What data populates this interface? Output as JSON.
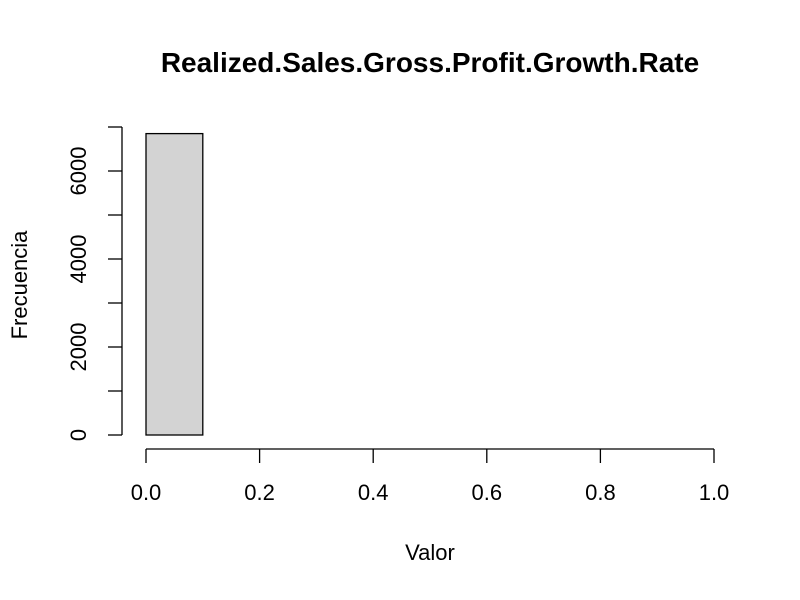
{
  "chart_data": {
    "type": "bar",
    "title": "Realized.Sales.Gross.Profit.Growth.Rate",
    "xlabel": "Valor",
    "ylabel": "Frecuencia",
    "bins": [
      {
        "from": 0.0,
        "to": 0.1,
        "count": 6850
      },
      {
        "from": 0.1,
        "to": 0.2,
        "count": 0
      },
      {
        "from": 0.2,
        "to": 0.3,
        "count": 0
      },
      {
        "from": 0.3,
        "to": 0.4,
        "count": 0
      },
      {
        "from": 0.4,
        "to": 0.5,
        "count": 0
      },
      {
        "from": 0.5,
        "to": 0.6,
        "count": 0
      },
      {
        "from": 0.6,
        "to": 0.7,
        "count": 0
      },
      {
        "from": 0.7,
        "to": 0.8,
        "count": 0
      },
      {
        "from": 0.8,
        "to": 0.9,
        "count": 0
      },
      {
        "from": 0.9,
        "to": 1.0,
        "count": 0
      }
    ],
    "xlim": [
      0,
      1
    ],
    "ylim": [
      0,
      7000
    ],
    "x_ticks": [
      0.0,
      0.2,
      0.4,
      0.6,
      0.8,
      1.0
    ],
    "x_tick_labels": [
      "0.0",
      "0.2",
      "0.4",
      "0.6",
      "0.8",
      "1.0"
    ],
    "y_ticks_major": [
      0,
      2000,
      4000,
      6000
    ],
    "y_tick_labels": [
      "0",
      "2000",
      "4000",
      "6000"
    ],
    "y_ticks_minor": [
      1000,
      3000,
      5000,
      7000
    ],
    "grid": false,
    "legend": "none",
    "bar_color": "#d3d3d3",
    "edge_color": "#000000"
  }
}
